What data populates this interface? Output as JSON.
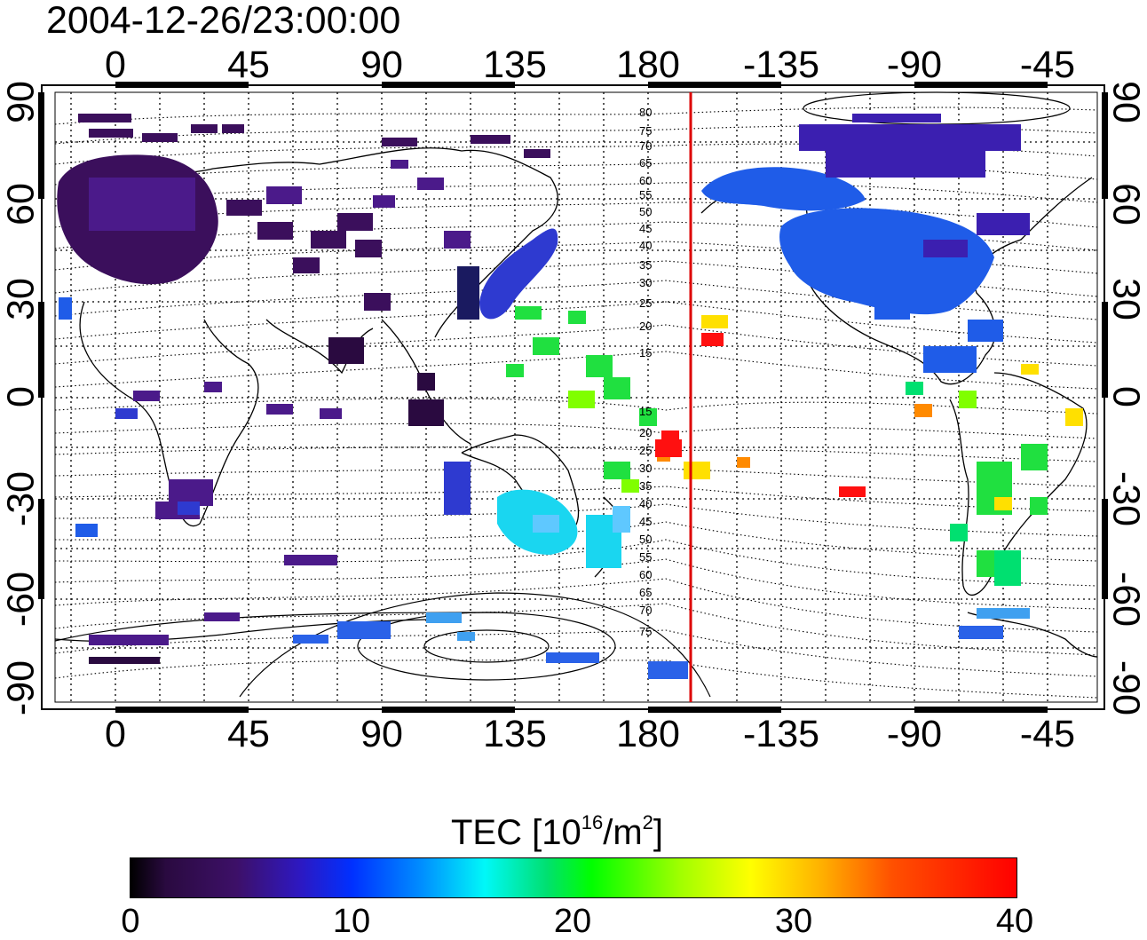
{
  "title": "2004-12-26/23:00:00",
  "map": {
    "lon_ticks": [
      "0",
      "45",
      "90",
      "135",
      "180",
      "-135",
      "-90",
      "-45"
    ],
    "lat_ticks": [
      "90",
      "60",
      "30",
      "0",
      "-30",
      "-60",
      "-90"
    ],
    "contour_labels": [
      "80",
      "75",
      "70",
      "65",
      "60",
      "55",
      "50",
      "45",
      "40",
      "35",
      "30",
      "25",
      "20",
      "15",
      "15",
      "20",
      "25",
      "30",
      "35",
      "40",
      "45",
      "50",
      "55",
      "60",
      "65",
      "70",
      "75"
    ],
    "marker_line_color": "#dd0000",
    "marker_longitude": -160
  },
  "colorbar": {
    "title": "TEC  [10",
    "exp1": "16",
    "unit": "/m",
    "exp2": "2",
    "close": "]",
    "ticks": [
      "0",
      "10",
      "20",
      "30",
      "40"
    ],
    "range": [
      0,
      40
    ],
    "colormap": "black-purple-blue-cyan-green-yellow-red"
  }
}
